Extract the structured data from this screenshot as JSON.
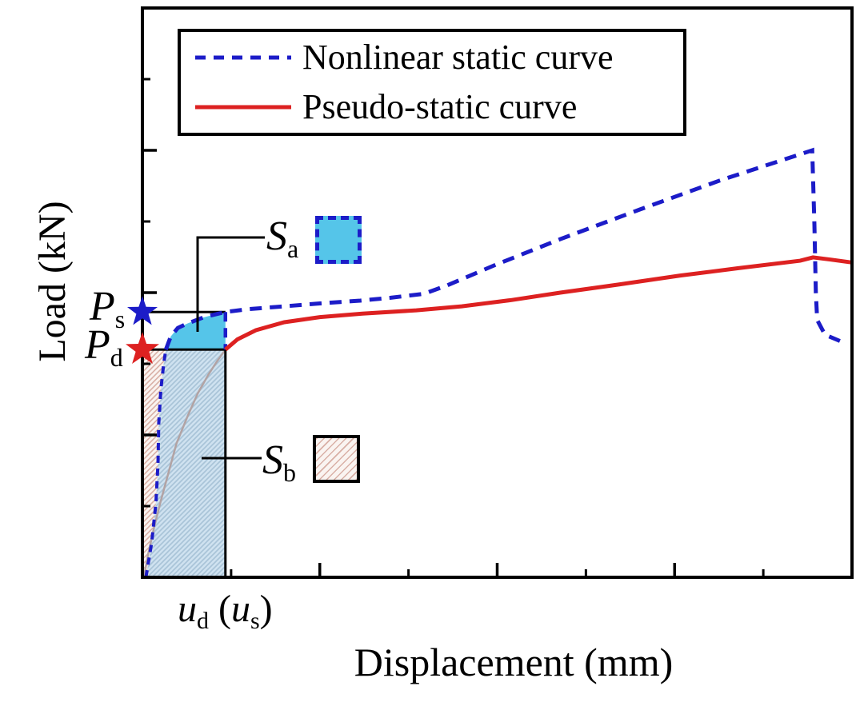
{
  "colors": {
    "blue": "#1c1cc8",
    "red": "#dd2121",
    "cyan_fill": "#55c5e9",
    "rect_fill": "#cfe2f0",
    "rect_hatch": "#a9c4d8",
    "pink_bg": "#faf4f1",
    "pink_hatch": "#d9b0a6",
    "faint_curve": "#b2a3a4",
    "ink": "#000000"
  },
  "legend": {
    "items": [
      {
        "label": "Nonlinear static curve",
        "style": "dashed",
        "color": "#1c1cc8"
      },
      {
        "label": "Pseudo-static curve",
        "style": "solid",
        "color": "#dd2121"
      }
    ]
  },
  "axes": {
    "xlabel": "Displacement (mm)",
    "ylabel": "Load (kN)"
  },
  "labels": {
    "ps": {
      "main": "P",
      "sub": "s"
    },
    "pd": {
      "main": "P",
      "sub": "d"
    },
    "sa": {
      "main": "S",
      "sub": "a"
    },
    "sb": {
      "main": "S",
      "sub": "b"
    },
    "u": {
      "main": "u",
      "sub": "d",
      "open": " (",
      "inner": "u",
      "inner_sub": "s",
      "close": ")"
    }
  },
  "chart_data": {
    "type": "line",
    "title": "",
    "xlabel": "Displacement (mm)",
    "ylabel": "Load (kN)",
    "axis_ranges": {
      "x": [
        0,
        100
      ],
      "y": [
        0,
        100
      ]
    },
    "note": "Axes carry no numeric tick labels; point coordinates are percent of axis length read from the pixels.",
    "series": [
      {
        "name": "Nonlinear static curve",
        "color": "#1c1cc8",
        "line_style": "dashed",
        "points": [
          [
            0.5,
            0
          ],
          [
            1.3,
            6
          ],
          [
            1.9,
            13
          ],
          [
            2.2,
            20
          ],
          [
            2.3,
            27
          ],
          [
            2.6,
            33
          ],
          [
            3.0,
            37.5
          ],
          [
            3.3,
            40
          ],
          [
            4.0,
            42.3
          ],
          [
            5.0,
            43.8
          ],
          [
            6.4,
            44.6
          ],
          [
            8.5,
            45.6
          ],
          [
            10,
            46.1
          ],
          [
            11.7,
            46.6
          ],
          [
            15,
            47.1
          ],
          [
            20,
            47.6
          ],
          [
            25,
            48.1
          ],
          [
            30.7,
            48.6
          ],
          [
            35,
            49.1
          ],
          [
            39.7,
            49.8
          ],
          [
            43,
            51.3
          ],
          [
            49.8,
            54.9
          ],
          [
            58.9,
            59.4
          ],
          [
            70.1,
            64.6
          ],
          [
            81.4,
            69.7
          ],
          [
            88,
            72.4
          ],
          [
            94.4,
            75
          ],
          [
            94.7,
            62
          ],
          [
            94.9,
            50
          ],
          [
            95.1,
            45.2
          ],
          [
            96.2,
            42.6
          ],
          [
            98.3,
            41.5
          ]
        ]
      },
      {
        "name": "Pseudo-static curve",
        "color": "#dd2121",
        "line_style": "solid",
        "points": [
          [
            0.2,
            0
          ],
          [
            0.8,
            4
          ],
          [
            1.6,
            8.5
          ],
          [
            2.5,
            13
          ],
          [
            3.6,
            18
          ],
          [
            4.8,
            23.5
          ],
          [
            6.4,
            28.4
          ],
          [
            7.8,
            32.3
          ],
          [
            9.3,
            35.6
          ],
          [
            10.5,
            37.9
          ],
          [
            11.7,
            40
          ],
          [
            13.4,
            41.8
          ],
          [
            16,
            43.4
          ],
          [
            20,
            44.8
          ],
          [
            25,
            45.7
          ],
          [
            31,
            46.3
          ],
          [
            38.6,
            46.9
          ],
          [
            45,
            47.6
          ],
          [
            52,
            48.7
          ],
          [
            58.9,
            50
          ],
          [
            67,
            51.4
          ],
          [
            75.8,
            53
          ],
          [
            84,
            54.3
          ],
          [
            92.7,
            55.6
          ],
          [
            94.5,
            56.2
          ],
          [
            97,
            55.8
          ],
          [
            100,
            55.3
          ]
        ]
      }
    ],
    "levels": {
      "ps": 46.6,
      "pd": 40,
      "ud": 11.7
    },
    "ticks": {
      "x_minor": [
        12.5,
        37.5,
        62.5,
        87.5
      ],
      "x_major": [
        25,
        50,
        75
      ],
      "y_minor": [
        12.5,
        37.5,
        62.5,
        87.5
      ],
      "y_major": [
        25,
        50,
        75
      ]
    },
    "markers": [
      {
        "name": "Ps",
        "shape": "star",
        "color": "#1c1cc8",
        "x": 0,
        "y": 46.6
      },
      {
        "name": "Pd",
        "shape": "star",
        "color": "#dd2121",
        "x": 0,
        "y": 40
      }
    ],
    "regions": [
      {
        "name": "Sa",
        "fill": "#55c5e9",
        "description": "area between nonlinear static curve and Pd level, up to ud"
      },
      {
        "name": "Sb",
        "fill": "hatched light blue / pink",
        "description": "rectangle under Pd from 0 to ud (area under curve)"
      }
    ]
  }
}
